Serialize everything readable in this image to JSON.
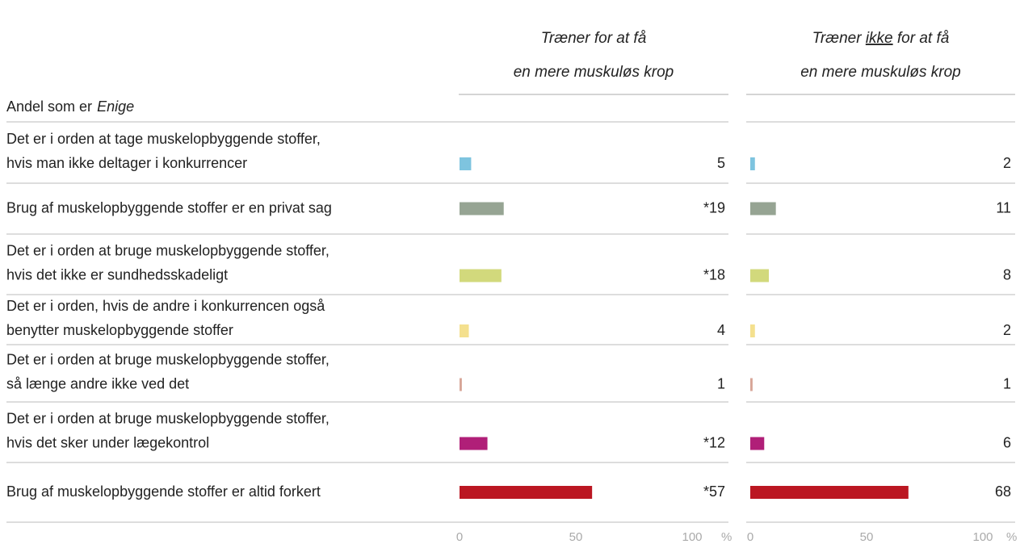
{
  "chart_data": {
    "type": "bar",
    "orientation": "horizontal",
    "subtitle": "Andel som er",
    "subtitle_emphasis": "Enige",
    "categories": [
      [
        "Det er i orden at tage muskelopbyggende stoffer,",
        "hvis man ikke deltager i konkurrencer"
      ],
      [
        "Brug af muskelopbyggende stoffer er en privat sag"
      ],
      [
        "Det er i orden at bruge muskelopbyggende stoffer,",
        "hvis det ikke er sundhedsskadeligt"
      ],
      [
        "Det er i orden, hvis de andre i konkurrencen også",
        "benytter muskelopbyggende stoffer"
      ],
      [
        "Det er i orden at bruge muskelopbyggende stoffer,",
        "så længe andre ikke ved det"
      ],
      [
        "Det er i orden at bruge muskelopbyggende stoffer,",
        "hvis det sker under lægekontrol"
      ],
      [
        "Brug af muskelopbyggende stoffer er altid forkert"
      ]
    ],
    "colors": [
      "#7ec4df",
      "#96a493",
      "#d2d97c",
      "#f4e08e",
      "#d7a597",
      "#b01f78",
      "#bb1722"
    ],
    "series": [
      {
        "name": [
          "Træner for at få",
          "en mere muskuløs krop"
        ],
        "values": [
          5,
          19,
          18,
          4,
          1,
          12,
          57
        ],
        "value_labels": [
          "5",
          "*19",
          "*18",
          "4",
          "1",
          "*12",
          "*57"
        ]
      },
      {
        "name": [
          "Træner ikke for at få",
          "en mere muskuløs krop"
        ],
        "emphasis": "ikke",
        "values": [
          2,
          11,
          8,
          2,
          1,
          6,
          68
        ]
      }
    ],
    "xlim": [
      0,
      100
    ],
    "xticks": [
      0,
      50,
      100
    ],
    "x_unit": "%"
  }
}
